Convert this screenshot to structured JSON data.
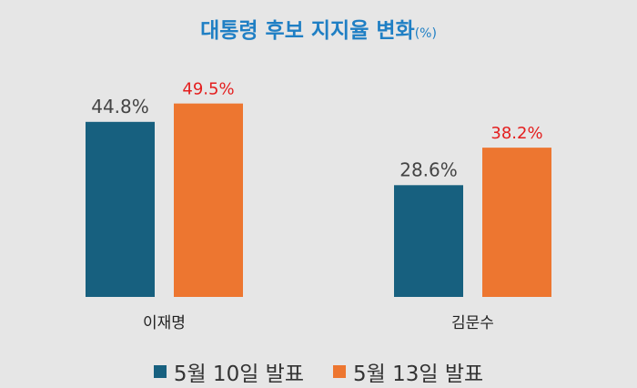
{
  "title": "대통령 후보 지지율 변화",
  "title_unit": "(%)",
  "colors": {
    "background": "#e6e6e6",
    "title": "#1f7fc4",
    "series_1": "#17607f",
    "series_2": "#ed7630",
    "label_series_1": "#444444",
    "label_series_2": "#e41e1e",
    "category_text": "#222222"
  },
  "chart_data": {
    "type": "bar",
    "title": "대통령 후보 지지율 변화(%)",
    "categories": [
      "이재명",
      "김문수"
    ],
    "series": [
      {
        "name": "5월 10일 발표",
        "values": [
          44.8,
          28.6
        ],
        "labels": [
          "44.8%",
          "28.6%"
        ]
      },
      {
        "name": "5월 13일 발표",
        "values": [
          49.5,
          38.2
        ],
        "labels": [
          "49.5%",
          "38.2%"
        ]
      }
    ],
    "xlabel": "",
    "ylabel": "",
    "ylim": [
      0,
      60
    ],
    "grid": false,
    "legend": "bottom"
  }
}
